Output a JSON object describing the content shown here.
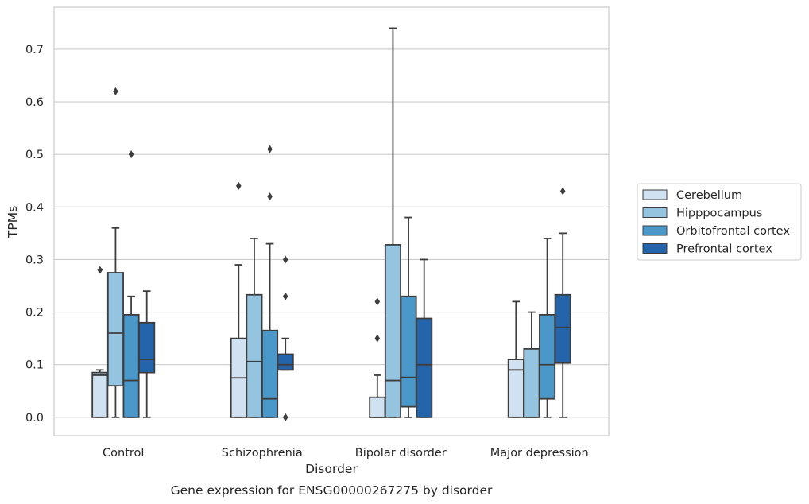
{
  "chart_data": {
    "type": "box",
    "title": "",
    "caption": "Gene expression for ENSG00000267275 by disorder",
    "xlabel": "Disorder",
    "ylabel": "TPMs",
    "ylim": [
      -0.035,
      0.78
    ],
    "yticks": [
      0.0,
      0.1,
      0.2,
      0.3,
      0.4,
      0.5,
      0.6,
      0.7
    ],
    "ytick_labels": [
      "0.0",
      "0.1",
      "0.2",
      "0.3",
      "0.4",
      "0.5",
      "0.6",
      "0.7"
    ],
    "categories": [
      "Control",
      "Schizophrenia",
      "Bipolar disorder",
      "Major depression"
    ],
    "grid": "horizontal",
    "legend_position": "right",
    "series": [
      {
        "name": "Cerebellum",
        "color": "#d0e1f2",
        "boxes": [
          {
            "whislo": 0.0,
            "q1": 0.0,
            "med": 0.08,
            "q3": 0.085,
            "whishi": 0.09,
            "fliers": [
              0.28
            ]
          },
          {
            "whislo": 0.0,
            "q1": 0.0,
            "med": 0.075,
            "q3": 0.15,
            "whishi": 0.29,
            "fliers": [
              0.44
            ]
          },
          {
            "whislo": 0.0,
            "q1": 0.0,
            "med": 0.0,
            "q3": 0.038,
            "whishi": 0.08,
            "fliers": [
              0.15,
              0.22
            ]
          },
          {
            "whislo": 0.0,
            "q1": 0.0,
            "med": 0.09,
            "q3": 0.11,
            "whishi": 0.22,
            "fliers": []
          }
        ]
      },
      {
        "name": "Hipppocampus",
        "color": "#94c4df",
        "boxes": [
          {
            "whislo": 0.0,
            "q1": 0.06,
            "med": 0.16,
            "q3": 0.275,
            "whishi": 0.36,
            "fliers": [
              0.62
            ]
          },
          {
            "whislo": 0.0,
            "q1": 0.0,
            "med": 0.106,
            "q3": 0.233,
            "whishi": 0.34,
            "fliers": []
          },
          {
            "whislo": 0.0,
            "q1": 0.0,
            "med": 0.07,
            "q3": 0.328,
            "whishi": 0.74,
            "fliers": []
          },
          {
            "whislo": 0.0,
            "q1": 0.0,
            "med": 0.0,
            "q3": 0.13,
            "whishi": 0.2,
            "fliers": []
          }
        ]
      },
      {
        "name": "Orbitofrontal cortex",
        "color": "#4a98c9",
        "boxes": [
          {
            "whislo": 0.0,
            "q1": 0.0,
            "med": 0.07,
            "q3": 0.195,
            "whishi": 0.23,
            "fliers": [
              0.5
            ]
          },
          {
            "whislo": 0.0,
            "q1": 0.0,
            "med": 0.035,
            "q3": 0.165,
            "whishi": 0.33,
            "fliers": [
              0.42,
              0.51
            ]
          },
          {
            "whislo": 0.0,
            "q1": 0.02,
            "med": 0.076,
            "q3": 0.23,
            "whishi": 0.38,
            "fliers": []
          },
          {
            "whislo": 0.0,
            "q1": 0.035,
            "med": 0.1,
            "q3": 0.195,
            "whishi": 0.34,
            "fliers": []
          }
        ]
      },
      {
        "name": "Prefrontal cortex",
        "color": "#2464ab",
        "boxes": [
          {
            "whislo": 0.0,
            "q1": 0.085,
            "med": 0.11,
            "q3": 0.18,
            "whishi": 0.24,
            "fliers": []
          },
          {
            "whislo": 0.09,
            "q1": 0.09,
            "med": 0.1,
            "q3": 0.12,
            "whishi": 0.15,
            "fliers": [
              0.0,
              0.0,
              0.23,
              0.3
            ]
          },
          {
            "whislo": 0.0,
            "q1": 0.0,
            "med": 0.1,
            "q3": 0.188,
            "whishi": 0.3,
            "fliers": []
          },
          {
            "whislo": 0.0,
            "q1": 0.103,
            "med": 0.171,
            "q3": 0.233,
            "whishi": 0.35,
            "fliers": [
              0.43
            ]
          }
        ]
      }
    ]
  }
}
